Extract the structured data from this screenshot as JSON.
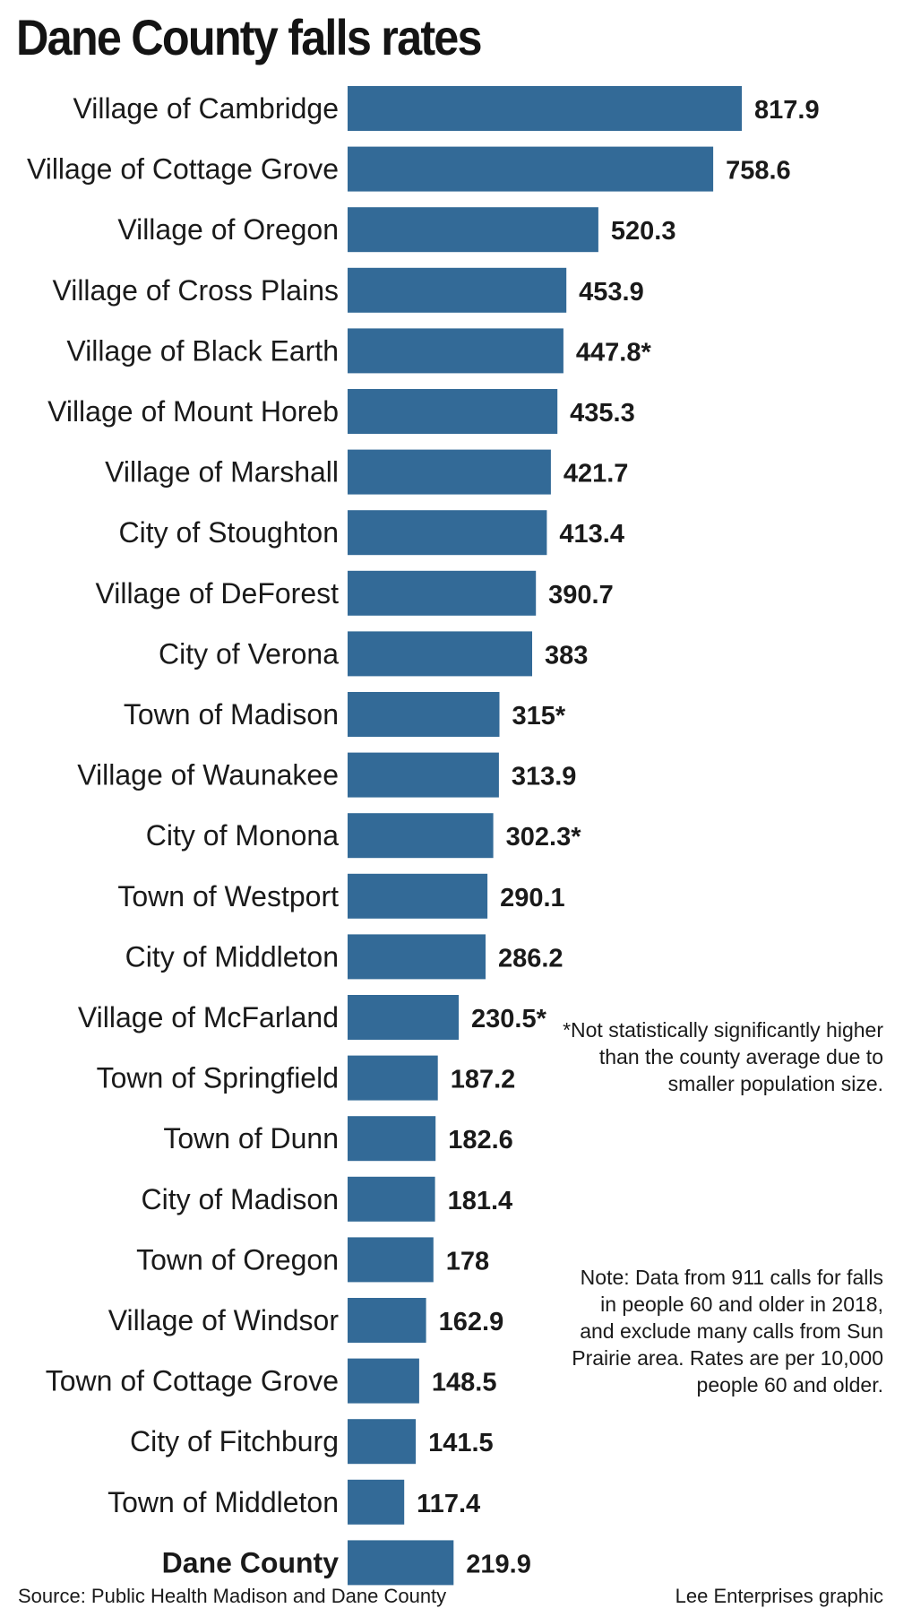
{
  "chart_data": {
    "type": "bar",
    "orientation": "horizontal",
    "title": "Dane County falls rates",
    "categories": [
      "Village of Cambridge",
      "Village of Cottage Grove",
      "Village of Oregon",
      "Village of Cross Plains",
      "Village of Black Earth",
      "Village of Mount Horeb",
      "Village of Marshall",
      "City of Stoughton",
      "Village of DeForest",
      "City of Verona",
      "Town of Madison",
      "Village of Waunakee",
      "City of Monona",
      "Town of Westport",
      "City of Middleton",
      "Village of McFarland",
      "Town of Springfield",
      "Town of Dunn",
      "City of Madison",
      "Town of Oregon",
      "Village of Windsor",
      "Town of Cottage Grove",
      "City of Fitchburg",
      "Town of Middleton",
      "Dane County"
    ],
    "values": [
      817.9,
      758.6,
      520.3,
      453.9,
      447.8,
      435.3,
      421.7,
      413.4,
      390.7,
      383,
      315,
      313.9,
      302.3,
      290.1,
      286.2,
      230.5,
      187.2,
      182.6,
      181.4,
      178,
      162.9,
      148.5,
      141.5,
      117.4,
      219.9
    ],
    "value_labels": [
      "817.9",
      "758.6",
      "520.3",
      "453.9",
      "447.8*",
      "435.3",
      "421.7",
      "413.4",
      "390.7",
      "383",
      "315*",
      "313.9",
      "302.3*",
      "290.1",
      "286.2",
      "230.5*",
      "187.2",
      "182.6",
      "181.4",
      "178",
      "162.9",
      "148.5",
      "141.5",
      "117.4",
      "219.9"
    ],
    "highlight_category": "Dane County",
    "xlim": [
      0,
      817.9
    ],
    "bar_color": "#336a97",
    "grid": false,
    "legend": "none"
  },
  "notes": {
    "asterisk": "*Not statistically significantly higher than the county average due to smaller population size.",
    "data": "Note: Data from 911 calls for falls in people 60 and older in 2018, and exclude many calls from Sun Prairie area. Rates are per 10,000 people 60 and older."
  },
  "footer": {
    "source": "Source: Public Health Madison and Dane County",
    "credit": "Lee Enterprises graphic"
  }
}
